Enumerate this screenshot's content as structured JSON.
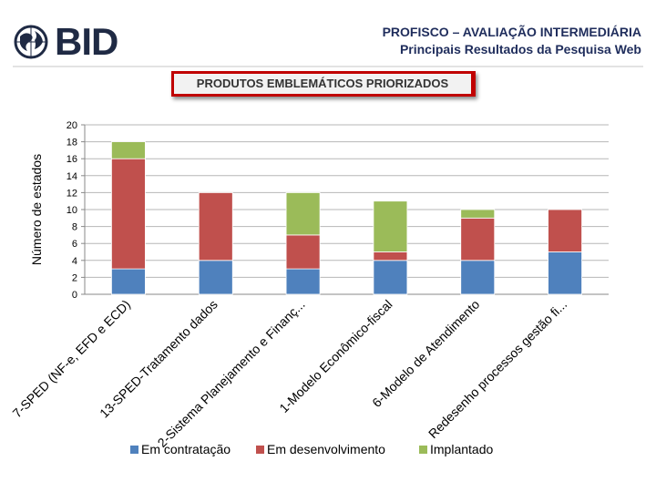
{
  "header": {
    "logo_text": "BID",
    "title": "PROFISCO – AVALIAÇÃO INTERMEDIÁRIA",
    "subtitle": "Principais Resultados da Pesquisa Web"
  },
  "banner": {
    "text": "PRODUTOS EMBLEMÁTICOS PRIORIZADOS"
  },
  "chart_data": {
    "type": "bar",
    "stacked": true,
    "title": "PRODUTOS EMBLEMÁTICOS PRIORIZADOS",
    "xlabel": "",
    "ylabel": "Número de estados",
    "ylim": [
      0,
      20
    ],
    "yticks": [
      0,
      2,
      4,
      6,
      8,
      10,
      12,
      14,
      16,
      18,
      20
    ],
    "grid": true,
    "legend_position": "bottom",
    "categories": [
      "7-SPED (NF-e, EFD e ECD)",
      "13-SPED-Tratamento dados",
      "2-Sistema Planejamento e Finanç...",
      "1-Modelo Econômico-fiscal",
      "6-Modelo de Atendimento",
      "Redesenho processos gestão fi..."
    ],
    "series": [
      {
        "name": "Em contratação",
        "color": "#4f81bd",
        "values": [
          3,
          4,
          3,
          4,
          4,
          5
        ]
      },
      {
        "name": "Em desenvolvimento",
        "color": "#c0504d",
        "values": [
          13,
          8,
          4,
          1,
          5,
          5
        ]
      },
      {
        "name": "Implantado",
        "color": "#9bbb59",
        "values": [
          2,
          0,
          5,
          6,
          1,
          0
        ]
      }
    ]
  }
}
